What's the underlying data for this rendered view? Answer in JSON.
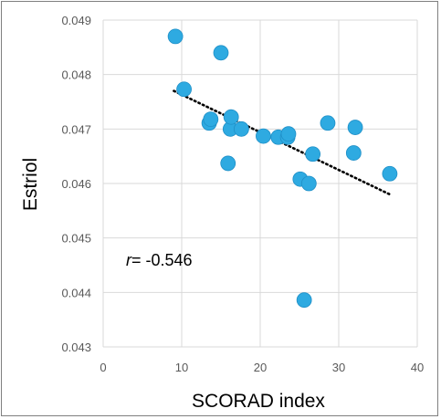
{
  "chart_data": {
    "type": "scatter",
    "title": "",
    "xlabel": "SCORAD index",
    "ylabel": "Estriol",
    "xlim": [
      0,
      40
    ],
    "ylim": [
      0.043,
      0.049
    ],
    "xticks": [
      "0",
      "10",
      "20",
      "30",
      "40"
    ],
    "yticks": [
      "0.043",
      "0.044",
      "0.045",
      "0.046",
      "0.047",
      "0.048",
      "0.049"
    ],
    "grid": true,
    "annotation": {
      "italic": "r",
      "text": "= -0.546"
    },
    "colors": {
      "marker": "#2eaae1",
      "trendline": "#000000",
      "grid": "#d9d9d9"
    },
    "points": [
      {
        "x": 9.2,
        "y": 0.0487
      },
      {
        "x": 10.3,
        "y": 0.04773
      },
      {
        "x": 13.5,
        "y": 0.04711
      },
      {
        "x": 13.7,
        "y": 0.04718
      },
      {
        "x": 15.0,
        "y": 0.0484
      },
      {
        "x": 15.9,
        "y": 0.04637
      },
      {
        "x": 16.2,
        "y": 0.047
      },
      {
        "x": 16.3,
        "y": 0.04722
      },
      {
        "x": 17.6,
        "y": 0.047
      },
      {
        "x": 20.4,
        "y": 0.04687
      },
      {
        "x": 22.3,
        "y": 0.04685
      },
      {
        "x": 23.5,
        "y": 0.04685
      },
      {
        "x": 23.6,
        "y": 0.04691
      },
      {
        "x": 25.1,
        "y": 0.04608
      },
      {
        "x": 25.6,
        "y": 0.04386
      },
      {
        "x": 26.2,
        "y": 0.046
      },
      {
        "x": 26.7,
        "y": 0.04654
      },
      {
        "x": 28.6,
        "y": 0.04711
      },
      {
        "x": 31.9,
        "y": 0.04656
      },
      {
        "x": 32.1,
        "y": 0.04703
      },
      {
        "x": 36.5,
        "y": 0.04618
      }
    ],
    "trendline": {
      "x": [
        9.0,
        36.5
      ],
      "y": [
        0.0477,
        0.0458
      ]
    }
  }
}
